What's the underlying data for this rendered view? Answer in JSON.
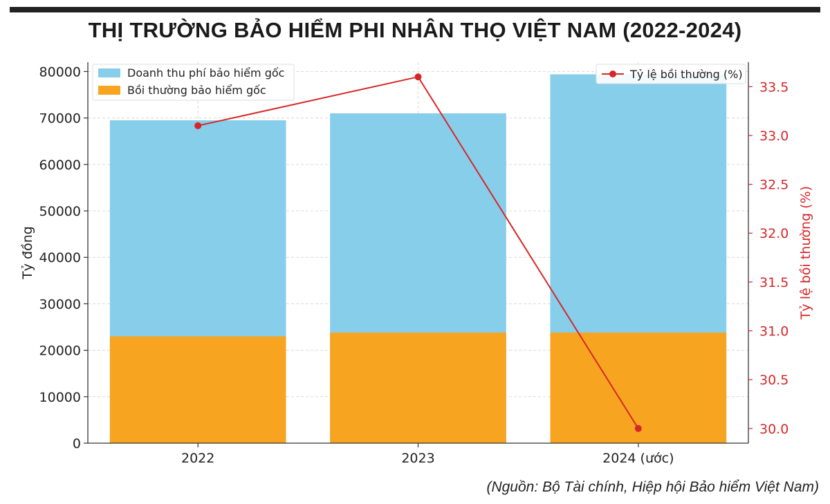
{
  "title": "THỊ TRƯỜNG BẢO HIỂM PHI NHÂN THỌ VIỆT NAM (2022-2024)",
  "source": "(Nguồn: Bộ Tài chính, Hiệp hội Bảo hiểm Việt Nam)",
  "colors": {
    "revenue": "#87ceeb",
    "claims": "#f7a520",
    "ratio": "#d62728",
    "axis": "#333333",
    "grid": "#d9d9d9"
  },
  "chart_data": {
    "type": "bar",
    "categories": [
      "2022",
      "2023",
      "2024 (ước)"
    ],
    "series": [
      {
        "name": "Doanh thu phí bảo hiểm gốc",
        "values": [
          69500,
          71000,
          79400
        ],
        "axis": "left",
        "kind": "bar"
      },
      {
        "name": "Bồi thường bảo hiểm gốc",
        "values": [
          23000,
          23800,
          23800
        ],
        "axis": "left",
        "kind": "bar"
      },
      {
        "name": "Tỷ lệ bồi thường (%)",
        "values": [
          33.1,
          33.6,
          30.0
        ],
        "axis": "right",
        "kind": "line"
      }
    ],
    "ylabel": "Tỷ đồng",
    "y2label": "Tỷ lệ bồi thường (%)",
    "ylim": [
      0,
      82000
    ],
    "y2lim": [
      29.85,
      33.75
    ],
    "yticks": [
      0,
      10000,
      20000,
      30000,
      40000,
      50000,
      60000,
      70000,
      80000
    ],
    "y2ticks": [
      30.0,
      30.5,
      31.0,
      31.5,
      32.0,
      32.5,
      33.0,
      33.5
    ],
    "grid": true,
    "legend_left": "top-left",
    "legend_right": "top-right"
  }
}
